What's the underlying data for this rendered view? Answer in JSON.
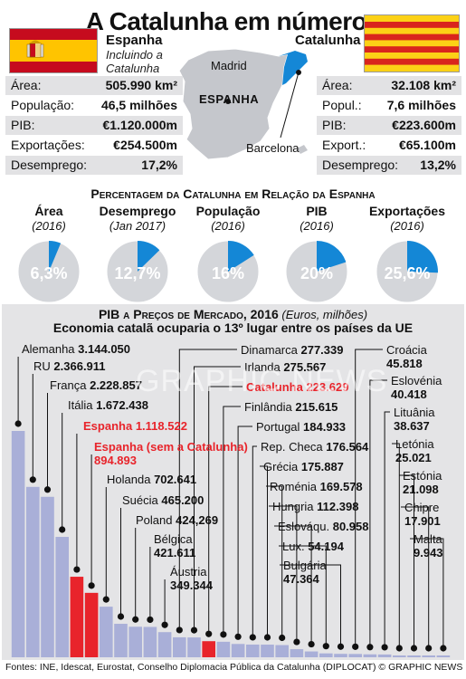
{
  "title": "A Catalunha em números",
  "spain": {
    "name": "Espanha",
    "note": "Incluindo a Catalunha",
    "stats": [
      {
        "label": "Área:",
        "value": "505.990 km²"
      },
      {
        "label": "População:",
        "value": "46,5 milhões"
      },
      {
        "label": "PIB:",
        "value": "€1.120.000m"
      },
      {
        "label": "Exportações:",
        "value": "€254.500m"
      },
      {
        "label": "Desemprego:",
        "value": "17,2%"
      }
    ]
  },
  "catalonia": {
    "name": "Catalunha",
    "stats": [
      {
        "label": "Área:",
        "value": "32.108 km²"
      },
      {
        "label": "Popul.:",
        "value": "7,6 milhões"
      },
      {
        "label": "PIB:",
        "value": "€223.600m"
      },
      {
        "label": "Export.:",
        "value": "€65.100m"
      },
      {
        "label": "Desemprego:",
        "value": "13,2%"
      }
    ]
  },
  "map": {
    "country_label": "ESPANHA",
    "madrid": "Madrid",
    "barcelona": "Barcelona",
    "colors": {
      "land": "#c5c7cc",
      "catalonia": "#1487d6",
      "sea": "#ffffff"
    }
  },
  "colors": {
    "accent_blue": "#1487d6",
    "pie_bg": "#d4d6da",
    "bar_normal": "#a9afd8",
    "bar_highlight": "#e8242b",
    "panel": "#e2e2e4",
    "spain_red": "#c60b1e",
    "spain_yellow": "#ffc400",
    "cat_red": "#d9251d",
    "cat_yellow": "#fcd116"
  },
  "percent_chart": {
    "title": "Percentagem da Catalunha em Relação da Espanha",
    "pies": [
      {
        "label": "Área",
        "year": "(2016)",
        "value": 6.3,
        "text": "6,3%"
      },
      {
        "label": "Desemprego",
        "year": "(Jan 2017)",
        "value": 12.7,
        "text": "12,7%"
      },
      {
        "label": "População",
        "year": "(2016)",
        "value": 16,
        "text": "16%"
      },
      {
        "label": "PIB",
        "year": "(2016)",
        "value": 20,
        "text": "20%"
      },
      {
        "label": "Exportações",
        "year": "(2016)",
        "value": 25.6,
        "text": "25,6%"
      }
    ]
  },
  "chart_data": {
    "type": "bar",
    "title": "PIB a Preços de Mercado, 2016",
    "title_note": "(Euros, milhões)",
    "subtitle": "Economia catalã ocuparia o 13º lugar entre os países da UE",
    "categories": [
      "Alemanha",
      "RU",
      "França",
      "Itália",
      "Espanha",
      "Espanha (sem a Catalunha)",
      "Holanda",
      "Suécia",
      "Poland",
      "Bélgica",
      "Áustria",
      "Dinamarca",
      "Irlanda",
      "Catalunha",
      "Finlândia",
      "Portugal",
      "Rep. Checa",
      "Grécia",
      "Roménia",
      "Hungria",
      "Eslováqu.",
      "Lux.",
      "Bulgária",
      "Croácia",
      "Eslovénia",
      "Lituânia",
      "Letónia",
      "Estónia",
      "Chipre",
      "Malta"
    ],
    "values": [
      3144050,
      2366911,
      2228857,
      1672438,
      1118522,
      894893,
      702641,
      465200,
      424269,
      421611,
      349344,
      277339,
      275567,
      223629,
      215615,
      184933,
      176564,
      175887,
      169578,
      112398,
      80958,
      54194,
      47364,
      45818,
      40418,
      38637,
      25021,
      21098,
      17901,
      9943
    ],
    "value_labels": [
      "3.144.050",
      "2.366.911",
      "2.228.857",
      "1.672.438",
      "1.118.522",
      "894.893",
      "702.641",
      "465.200",
      "424,269",
      "421.611",
      "349.344",
      "277.339",
      "275.567",
      "223.629",
      "215.615",
      "184.933",
      "176.564",
      "175.887",
      "169.578",
      "112.398",
      "80.958",
      "54.194",
      "47.364",
      "45.818",
      "40.418",
      "38.637",
      "25.021",
      "21.098",
      "17.901",
      "9.943"
    ],
    "highlight": [
      "Espanha",
      "Espanha (sem a Catalunha)",
      "Catalunha"
    ]
  },
  "watermark": "GRAPHIC NEWS",
  "footer": "Fontes: INE, Idescat, Eurostat, Conselho Diplomacia Pública da Catalunha (DIPLOCAT) © GRAPHIC NEWS"
}
